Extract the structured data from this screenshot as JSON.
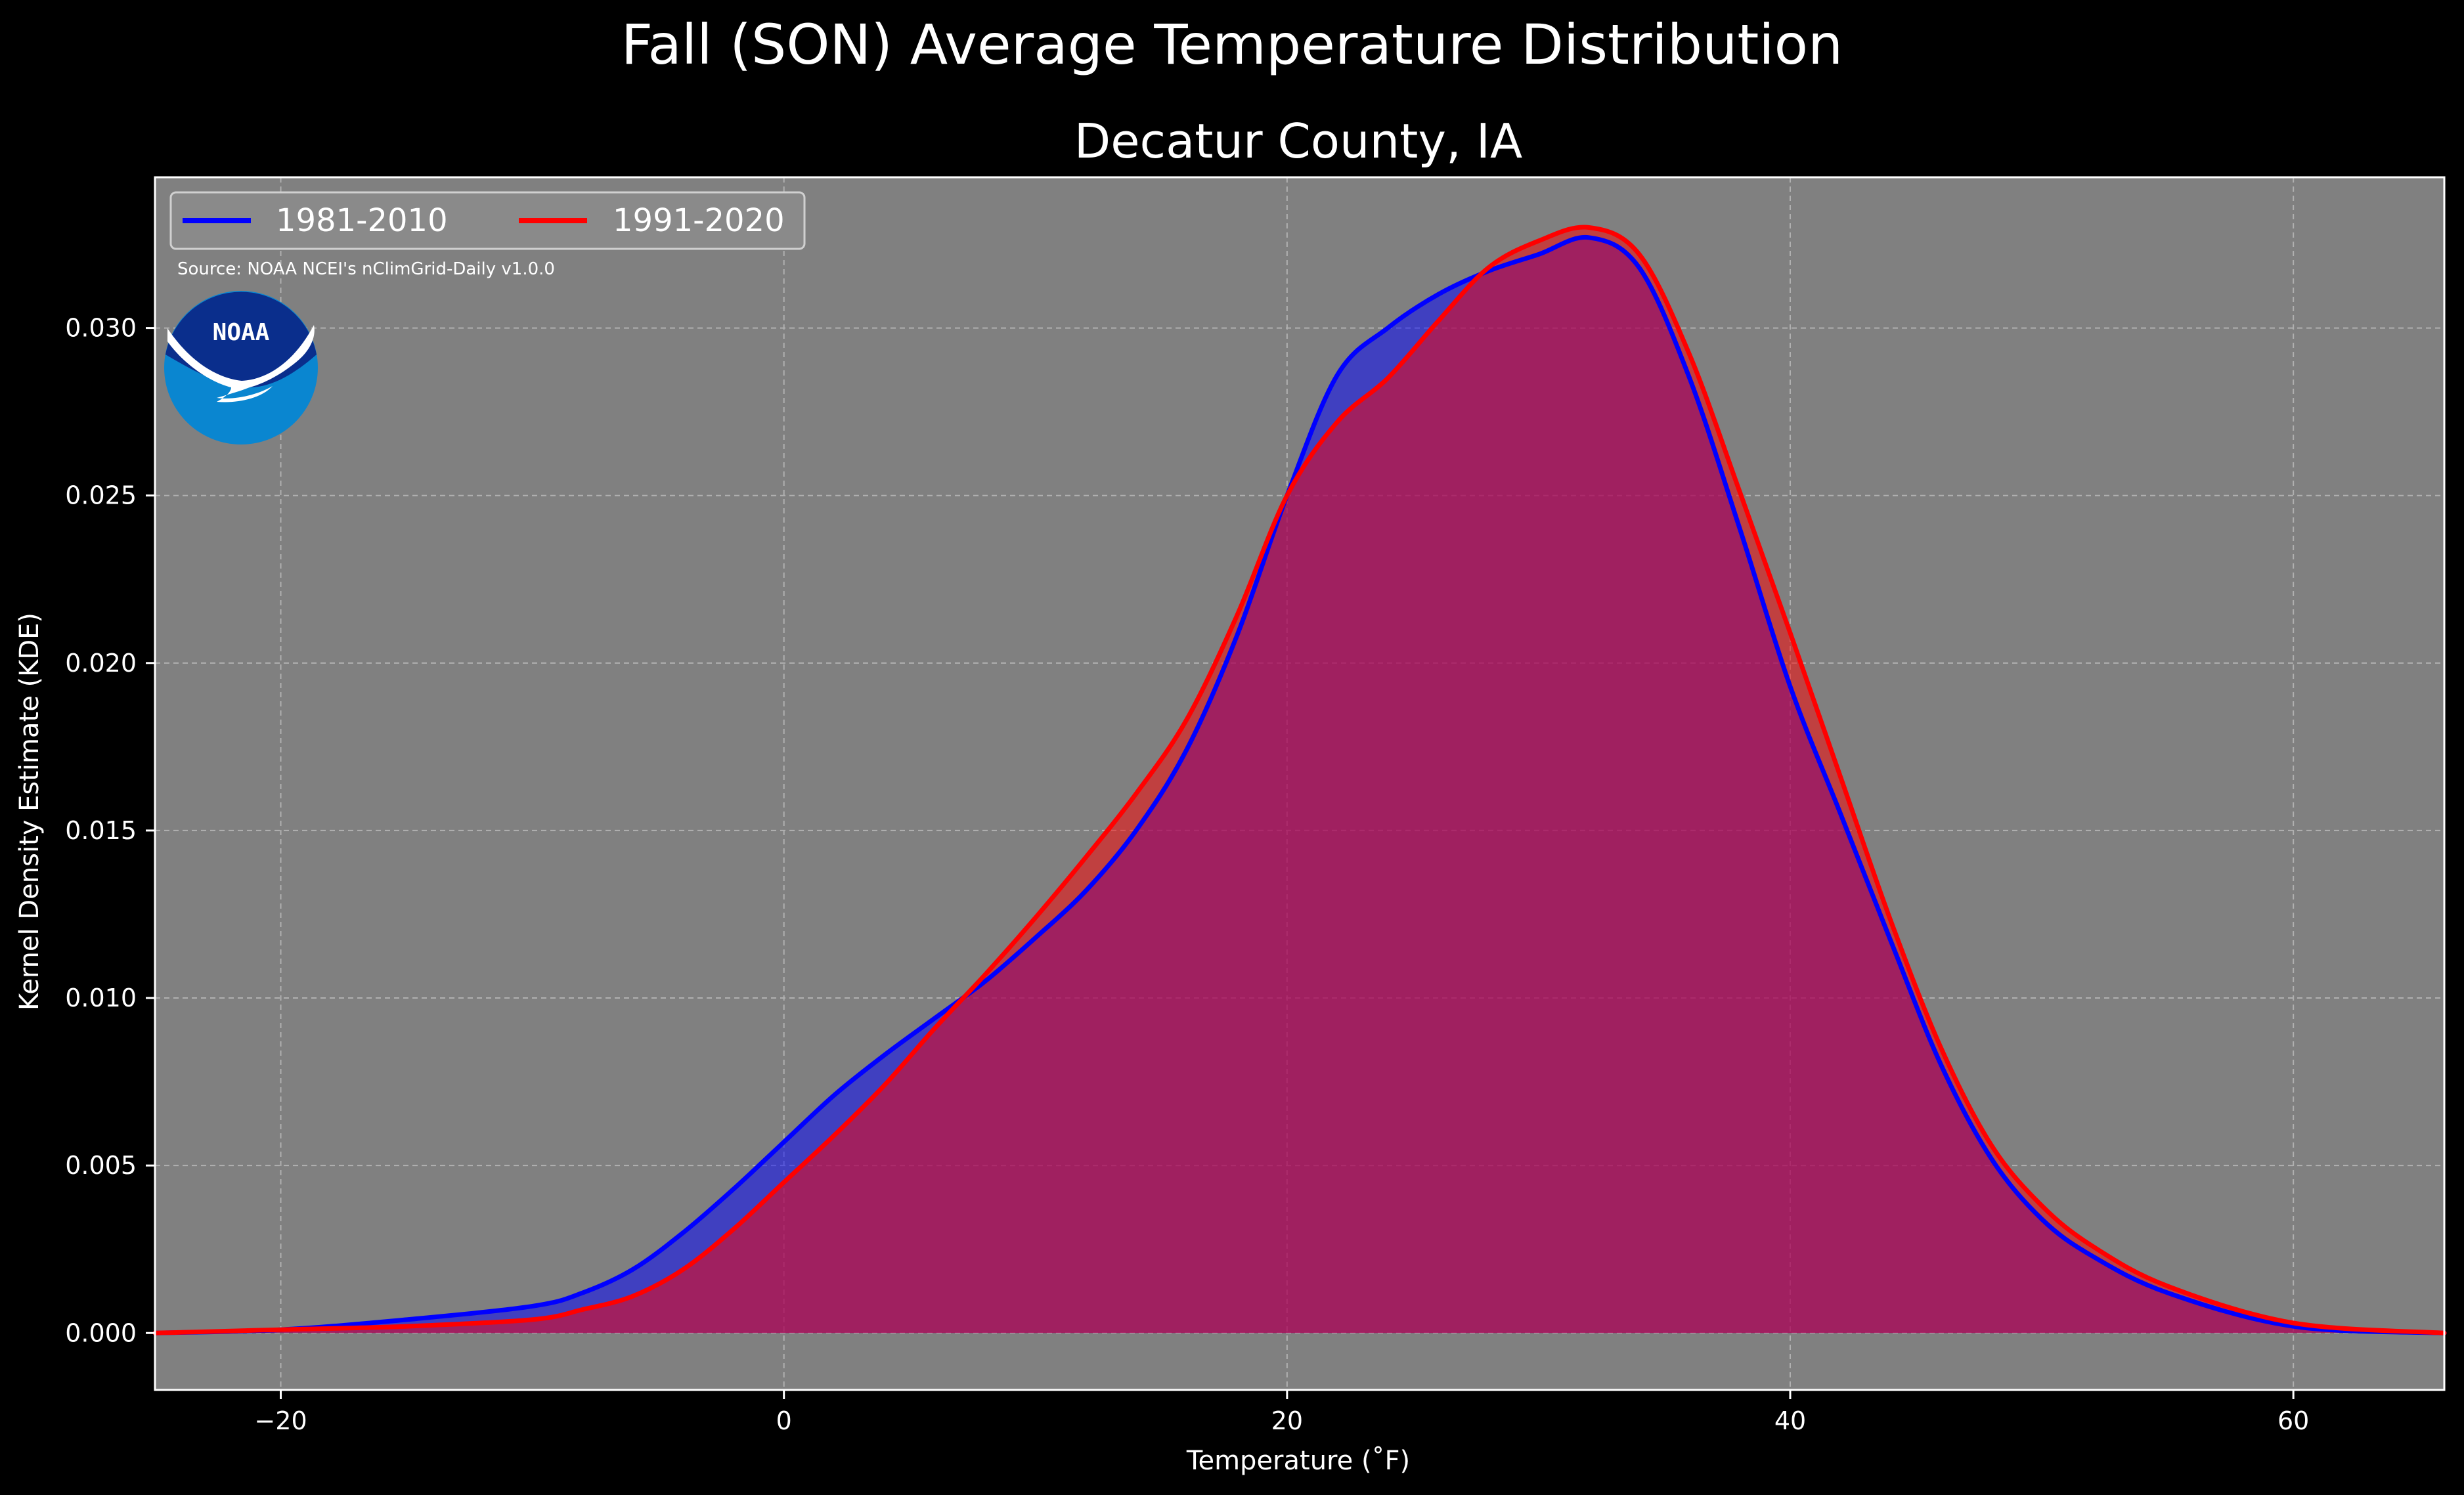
{
  "figure_title": "Fall (SON) Average Temperature Distribution",
  "colors": {
    "background": "#000000",
    "plot_background": "#808080",
    "series_1981_2010": "#0000ff",
    "series_1991_2020": "#ff0000",
    "noaa_dark": "#0a2e8c",
    "noaa_light": "#0a86d0"
  },
  "logo": {
    "text": "NOAA",
    "icon": "noaa-logo"
  },
  "chart_data": {
    "type": "area",
    "title": "Decatur County, IA",
    "xlabel": "Temperature (˚F)",
    "ylabel": "Kernel Density Estimate (KDE)",
    "xlim": [
      -25,
      66
    ],
    "ylim": [
      -0.0017,
      0.0345
    ],
    "xticks": [
      -20,
      0,
      20,
      40,
      60
    ],
    "xtick_labels": [
      "−20",
      "0",
      "20",
      "40",
      "60"
    ],
    "yticks": [
      0.0,
      0.005,
      0.01,
      0.015,
      0.02,
      0.025,
      0.03
    ],
    "ytick_labels": [
      "0.000",
      "0.005",
      "0.010",
      "0.015",
      "0.020",
      "0.025",
      "0.030"
    ],
    "grid": true,
    "legend_position": "top-left",
    "annotation": "Source: NOAA NCEI's nClimGrid-Daily v1.0.0",
    "x": [
      -25,
      -20,
      -15,
      -10,
      -8,
      -6,
      -4,
      -2,
      0,
      2,
      4,
      6,
      8,
      10,
      12,
      14,
      16,
      18,
      20,
      22,
      24,
      26,
      28,
      30,
      32,
      34,
      36,
      38,
      40,
      42,
      44,
      46,
      48,
      50,
      52,
      55,
      60,
      66
    ],
    "series": [
      {
        "name": "1981-2010",
        "color": "#0000ff",
        "values": [
          0.0,
          0.0001,
          0.0004,
          0.0008,
          0.0012,
          0.0019,
          0.003,
          0.0043,
          0.0057,
          0.0071,
          0.0083,
          0.0094,
          0.0105,
          0.0118,
          0.0132,
          0.015,
          0.0174,
          0.0208,
          0.025,
          0.0286,
          0.03,
          0.031,
          0.0317,
          0.0322,
          0.0327,
          0.0318,
          0.0285,
          0.024,
          0.0193,
          0.0155,
          0.0117,
          0.008,
          0.0052,
          0.0034,
          0.0023,
          0.0012,
          0.0002,
          0.0
        ]
      },
      {
        "name": "1991-2020",
        "color": "#ff0000",
        "values": [
          0.0,
          0.0001,
          0.0002,
          0.0004,
          0.0007,
          0.0011,
          0.0019,
          0.0031,
          0.0045,
          0.0059,
          0.0074,
          0.0091,
          0.0107,
          0.0124,
          0.0142,
          0.0161,
          0.0183,
          0.0214,
          0.025,
          0.0272,
          0.0285,
          0.0302,
          0.0318,
          0.0326,
          0.033,
          0.0322,
          0.0292,
          0.0251,
          0.0209,
          0.0166,
          0.0123,
          0.0085,
          0.0056,
          0.0038,
          0.0026,
          0.0014,
          0.0003,
          0.0
        ]
      }
    ]
  }
}
